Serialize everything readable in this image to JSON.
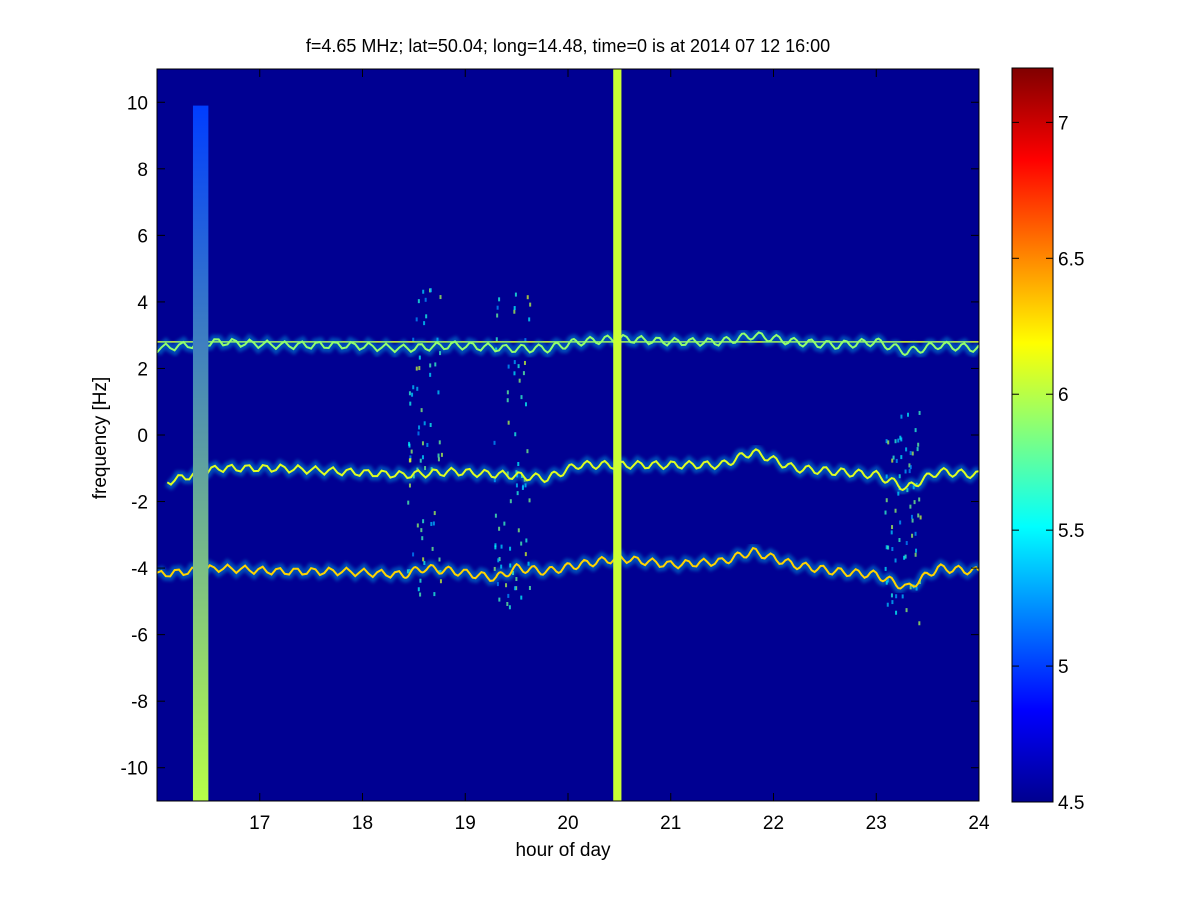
{
  "chart_data": {
    "type": "heatmap",
    "title": "f=4.65 MHz;  lat=50.04; long=14.48, time=0 is at 2014 07 12 16:00",
    "xlabel": "hour of day",
    "ylabel": "frequency [Hz]",
    "xlim": [
      16.0,
      24.0
    ],
    "ylim": [
      -11.0,
      11.0
    ],
    "x_ticks": [
      17,
      18,
      19,
      20,
      21,
      22,
      23,
      24
    ],
    "y_ticks": [
      -10,
      -8,
      -6,
      -4,
      -2,
      0,
      2,
      4,
      6,
      8,
      10
    ],
    "colorbar": {
      "colormap": "jet",
      "clim": [
        4.5,
        7.2
      ],
      "ticks": [
        4.5,
        5,
        5.5,
        6,
        6.5,
        7
      ]
    },
    "background_value": 4.55,
    "grid": false,
    "features": {
      "constant_line": {
        "y": 2.8,
        "x_range": [
          16.0,
          24.0
        ],
        "value": 6.1
      },
      "traces": [
        {
          "name": "upper trace",
          "x": [
            16.0,
            16.6,
            17.2,
            17.8,
            18.4,
            18.9,
            19.4,
            19.8,
            20.1,
            20.5,
            21.0,
            21.5,
            21.8,
            22.2,
            22.6,
            23.0,
            23.3,
            23.6,
            24.0
          ],
          "y": [
            2.6,
            2.8,
            2.7,
            2.7,
            2.6,
            2.7,
            2.6,
            2.6,
            2.8,
            2.9,
            2.8,
            2.8,
            3.0,
            2.8,
            2.7,
            2.8,
            2.5,
            2.7,
            2.6
          ],
          "value": 5.9
        },
        {
          "name": "middle trace",
          "x": [
            16.1,
            16.6,
            17.2,
            17.8,
            18.4,
            18.9,
            19.4,
            19.8,
            20.1,
            20.5,
            21.0,
            21.5,
            21.8,
            22.2,
            22.6,
            23.0,
            23.3,
            23.6,
            24.0
          ],
          "y": [
            -1.4,
            -1.0,
            -1.0,
            -1.1,
            -1.2,
            -1.1,
            -1.2,
            -1.3,
            -0.9,
            -0.9,
            -0.9,
            -0.9,
            -0.5,
            -1.0,
            -1.1,
            -1.2,
            -1.6,
            -1.1,
            -1.2
          ],
          "value": 6.1
        },
        {
          "name": "lower trace",
          "x": [
            16.0,
            16.6,
            17.2,
            17.8,
            18.4,
            18.6,
            18.9,
            19.3,
            19.5,
            19.8,
            20.1,
            20.5,
            21.0,
            21.5,
            21.8,
            22.2,
            22.6,
            23.0,
            23.3,
            23.6,
            24.0
          ],
          "y": [
            -4.2,
            -4.0,
            -4.1,
            -4.1,
            -4.2,
            -4.0,
            -4.1,
            -4.3,
            -4.0,
            -4.1,
            -3.9,
            -3.7,
            -3.9,
            -3.8,
            -3.5,
            -3.9,
            -4.1,
            -4.2,
            -4.6,
            -4.0,
            -4.1
          ],
          "value": 6.3
        }
      ],
      "vertical_bands": [
        {
          "x_range": [
            16.35,
            16.5
          ],
          "y_range": [
            -11.0,
            9.9
          ],
          "value_low": 6.0,
          "value_high": 5.0
        },
        {
          "x_range": [
            20.44,
            20.52
          ],
          "y_range": [
            -11.0,
            11.0
          ],
          "value": 6.05
        }
      ],
      "bursts": [
        {
          "x": 18.6,
          "y_range": [
            -4.8,
            4.5
          ]
        },
        {
          "x": 19.45,
          "y_range": [
            -5.2,
            4.3
          ]
        },
        {
          "x": 23.25,
          "y_range": [
            -5.8,
            1.0
          ]
        }
      ]
    }
  }
}
